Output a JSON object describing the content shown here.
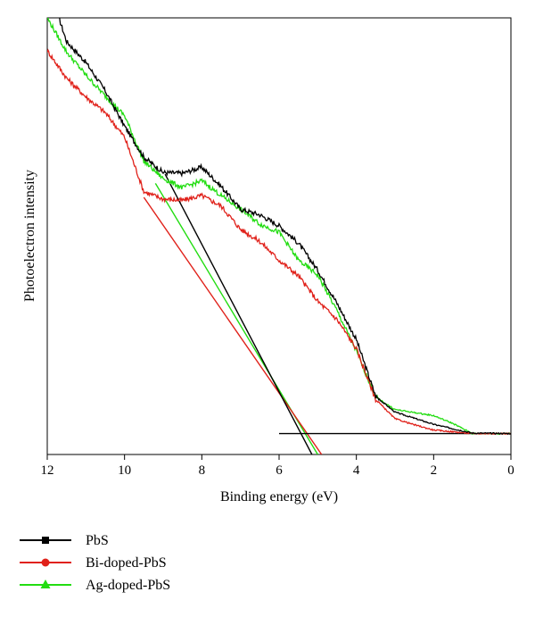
{
  "chart_data": {
    "type": "line",
    "title": "",
    "xlabel": "Binding energy (eV)",
    "ylabel": "Photoelectron intensity",
    "xlim": [
      12,
      0
    ],
    "ylim": [
      0,
      100
    ],
    "x_reversed": true,
    "xticks": [
      "12",
      "10",
      "8",
      "6",
      "4",
      "2",
      "0"
    ],
    "grid": false,
    "legend_position": "bottom-left",
    "series": [
      {
        "name": "PbS",
        "color": "#000000",
        "marker": "square",
        "points": [
          [
            11.7,
            100
          ],
          [
            11.5,
            94.6
          ],
          [
            11.0,
            89.8
          ],
          [
            10.5,
            83.3
          ],
          [
            10.0,
            75.2
          ],
          [
            9.5,
            68.1
          ],
          [
            9.0,
            64.6
          ],
          [
            8.5,
            64.4
          ],
          [
            8.0,
            65.8
          ],
          [
            7.5,
            61.4
          ],
          [
            7.0,
            56.2
          ],
          [
            6.5,
            54.9
          ],
          [
            6.0,
            52.4
          ],
          [
            5.5,
            48.4
          ],
          [
            5.0,
            42.2
          ],
          [
            4.5,
            34.6
          ],
          [
            4.0,
            26.3
          ],
          [
            3.5,
            13.3
          ],
          [
            3.0,
            9.7
          ],
          [
            2.0,
            6.9
          ],
          [
            1.0,
            4.9
          ],
          [
            0.0,
            4.8
          ]
        ],
        "tangent_line": [
          [
            8.95,
            64.2
          ],
          [
            5.15,
            0.0
          ]
        ],
        "baseline": [
          [
            6.0,
            4.8
          ],
          [
            0.0,
            4.8
          ]
        ]
      },
      {
        "name": "Bi-doped-PbS",
        "color": "#e0211a",
        "marker": "circle",
        "points": [
          [
            12.0,
            92.5
          ],
          [
            11.5,
            86.2
          ],
          [
            11.0,
            81.9
          ],
          [
            10.5,
            78.3
          ],
          [
            10.0,
            72.7
          ],
          [
            9.5,
            60.2
          ],
          [
            9.0,
            58.5
          ],
          [
            8.5,
            58.2
          ],
          [
            8.0,
            59.3
          ],
          [
            7.5,
            56.9
          ],
          [
            7.0,
            51.6
          ],
          [
            6.5,
            48.8
          ],
          [
            6.0,
            44.5
          ],
          [
            5.5,
            40.9
          ],
          [
            5.0,
            35.1
          ],
          [
            4.5,
            30.9
          ],
          [
            4.0,
            24.2
          ],
          [
            3.5,
            12.6
          ],
          [
            3.0,
            8.2
          ],
          [
            2.5,
            6.8
          ],
          [
            2.0,
            5.6
          ],
          [
            1.0,
            4.8
          ],
          [
            0.0,
            4.8
          ]
        ],
        "tangent_line": [
          [
            9.5,
            58.9
          ],
          [
            4.9,
            0.0
          ]
        ]
      },
      {
        "name": "Ag-doped-PbS",
        "color": "#22dd11",
        "marker": "triangle",
        "points": [
          [
            12.0,
            100
          ],
          [
            11.5,
            92.2
          ],
          [
            11.0,
            86.9
          ],
          [
            10.5,
            82.1
          ],
          [
            10.0,
            77.6
          ],
          [
            9.5,
            67.2
          ],
          [
            9.0,
            63.2
          ],
          [
            8.5,
            61.1
          ],
          [
            8.0,
            62.7
          ],
          [
            7.5,
            59.3
          ],
          [
            7.0,
            56.2
          ],
          [
            6.5,
            52.8
          ],
          [
            6.0,
            50.9
          ],
          [
            5.5,
            44.5
          ],
          [
            5.0,
            41.1
          ],
          [
            4.5,
            32.9
          ],
          [
            4.0,
            23.7
          ],
          [
            3.5,
            13.1
          ],
          [
            3.0,
            10.3
          ],
          [
            2.0,
            8.9
          ],
          [
            1.5,
            7.1
          ],
          [
            1.0,
            4.8
          ],
          [
            0.0,
            4.8
          ]
        ],
        "tangent_line": [
          [
            9.2,
            62.1
          ],
          [
            5.0,
            0.0
          ]
        ]
      }
    ]
  }
}
